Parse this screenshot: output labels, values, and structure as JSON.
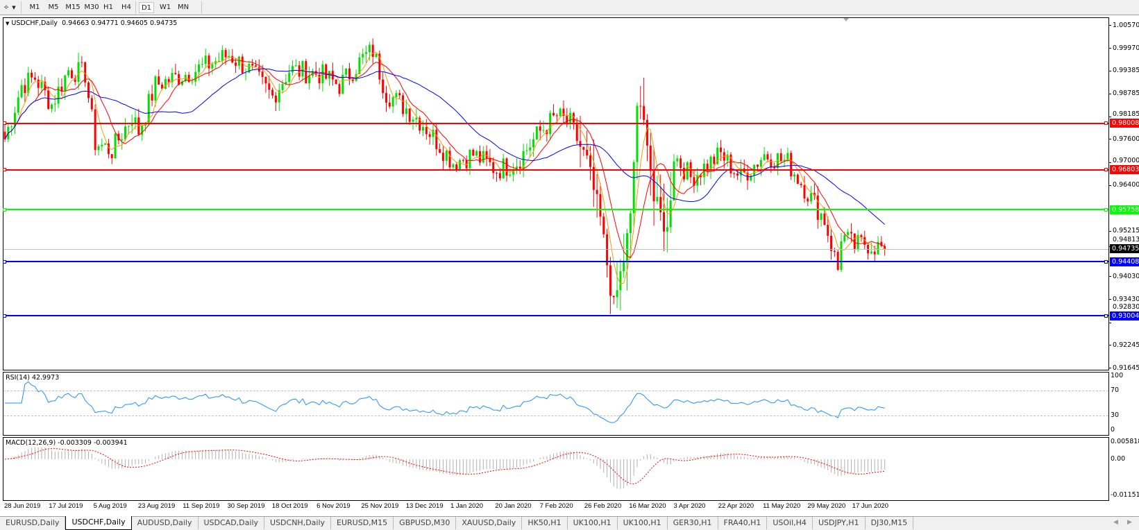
{
  "toolbar": {
    "timeframes": [
      "M1",
      "M5",
      "M15",
      "M30",
      "H1",
      "H4",
      "D1",
      "W1",
      "MN"
    ],
    "active": "D1"
  },
  "chart": {
    "symbol_title": "USDCHF,Daily",
    "ohlc": "0.94663 0.94771 0.94605 0.94735",
    "price_axis": [
      "1.00570",
      "0.99970",
      "0.99385",
      "0.98785",
      "0.98185",
      "0.97600",
      "0.97000",
      "0.96400",
      "0.95215",
      "0.94813",
      "0.94030",
      "0.93430",
      "0.92830",
      "0.92245",
      "0.91645"
    ],
    "current_price": "0.94735",
    "levels": [
      {
        "price": "0.98008",
        "color": "#ff0000"
      },
      {
        "price": "0.96803",
        "color": "#ff0000"
      },
      {
        "price": "0.95758",
        "color": "#00ff00"
      },
      {
        "price": "0.94408",
        "color": "#0000ff"
      },
      {
        "price": "0.93004",
        "color": "#0000ff"
      }
    ],
    "colors": {
      "bull": "#00e000",
      "bear": "#ff0000",
      "ma_fast": "#ff9900",
      "ma_mid": "#ff0000",
      "ma_slow": "#0000ff",
      "rsi": "#1e90ff",
      "macd_hist": "#b0b0b0",
      "macd_signal": "#ff0000"
    }
  },
  "rsi": {
    "title": "RSI(14) 42.9973",
    "axis": [
      "100",
      "70",
      "30",
      "0"
    ]
  },
  "macd": {
    "title": "MACD(12,26,9) -0.003309 -0.003941",
    "axis": [
      "0.005818",
      "0.00",
      "-0.011514"
    ]
  },
  "dates": [
    "28 Jun 2019",
    "17 Jul 2019",
    "5 Aug 2019",
    "23 Aug 2019",
    "11 Sep 2019",
    "30 Sep 2019",
    "18 Oct 2019",
    "6 Nov 2019",
    "25 Nov 2019",
    "13 Dec 2019",
    "1 Jan 2020",
    "20 Jan 2020",
    "7 Feb 2020",
    "26 Feb 2020",
    "16 Mar 2020",
    "3 Apr 2020",
    "22 Apr 2020",
    "11 May 2020",
    "29 May 2020",
    "17 Jun 2020"
  ],
  "tabs": [
    "EURUSD,Daily",
    "USDCHF,Daily",
    "AUDUSD,Daily",
    "USDCAD,Daily",
    "USDCNH,Daily",
    "EURUSD,M15",
    "GBPUSD,M30",
    "XAUUSD,Daily",
    "HK50,H1",
    "UK100,H1",
    "UK100,H1",
    "GER30,H1",
    "FRA40,H1",
    "USOil,H4",
    "USDJPY,H1",
    "DJ30,M15"
  ],
  "active_tab": "USDCHF,Daily",
  "chart_data": {
    "type": "candlestick",
    "approx_closes": [
      [
        "2019-06-28",
        0.976
      ],
      [
        "2019-07-05",
        0.99
      ],
      [
        "2019-07-10",
        0.992
      ],
      [
        "2019-07-17",
        0.985
      ],
      [
        "2019-07-25",
        0.994
      ],
      [
        "2019-08-01",
        0.993
      ],
      [
        "2019-08-05",
        0.975
      ],
      [
        "2019-08-12",
        0.973
      ],
      [
        "2019-08-20",
        0.982
      ],
      [
        "2019-08-23",
        0.978
      ],
      [
        "2019-08-30",
        0.99
      ],
      [
        "2019-09-11",
        0.993
      ],
      [
        "2019-09-20",
        0.995
      ],
      [
        "2019-09-30",
        0.998
      ],
      [
        "2019-10-08",
        0.994
      ],
      [
        "2019-10-18",
        0.987
      ],
      [
        "2019-10-25",
        0.994
      ],
      [
        "2019-11-06",
        0.993
      ],
      [
        "2019-11-15",
        0.99
      ],
      [
        "2019-11-25",
        0.997
      ],
      [
        "2019-11-29",
        0.999
      ],
      [
        "2019-12-05",
        0.988
      ],
      [
        "2019-12-13",
        0.984
      ],
      [
        "2019-12-20",
        0.98
      ],
      [
        "2020-01-01",
        0.97
      ],
      [
        "2020-01-10",
        0.972
      ],
      [
        "2020-01-20",
        0.968
      ],
      [
        "2020-01-28",
        0.97
      ],
      [
        "2020-02-07",
        0.978
      ],
      [
        "2020-02-14",
        0.982
      ],
      [
        "2020-02-20",
        0.98
      ],
      [
        "2020-02-26",
        0.97
      ],
      [
        "2020-03-03",
        0.955
      ],
      [
        "2020-03-09",
        0.932
      ],
      [
        "2020-03-13",
        0.945
      ],
      [
        "2020-03-16",
        0.955
      ],
      [
        "2020-03-19",
        0.985
      ],
      [
        "2020-03-23",
        0.977
      ],
      [
        "2020-03-26",
        0.96
      ],
      [
        "2020-03-31",
        0.952
      ],
      [
        "2020-04-03",
        0.972
      ],
      [
        "2020-04-10",
        0.966
      ],
      [
        "2020-04-22",
        0.972
      ],
      [
        "2020-05-01",
        0.966
      ],
      [
        "2020-05-11",
        0.972
      ],
      [
        "2020-05-20",
        0.97
      ],
      [
        "2020-05-29",
        0.962
      ],
      [
        "2020-06-05",
        0.955
      ],
      [
        "2020-06-10",
        0.942
      ],
      [
        "2020-06-12",
        0.951
      ],
      [
        "2020-06-17",
        0.948
      ],
      [
        "2020-06-22",
        0.949
      ],
      [
        "2020-06-30",
        0.94735
      ]
    ],
    "ylim": [
      0.91645,
      1.0057
    ]
  }
}
